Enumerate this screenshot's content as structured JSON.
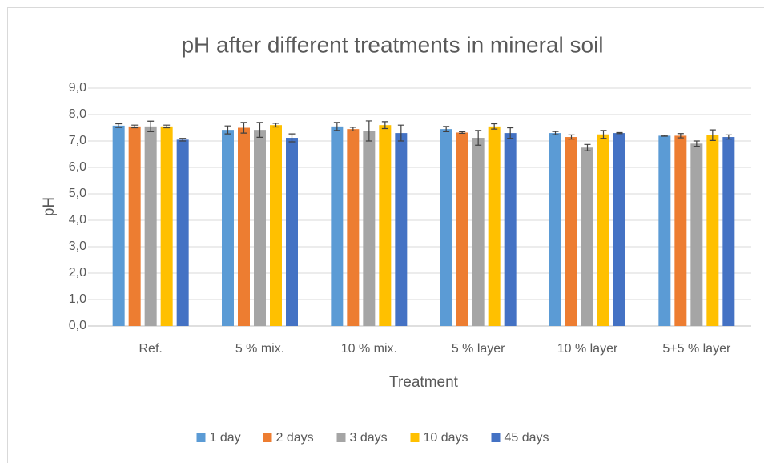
{
  "chart_data": {
    "type": "bar",
    "title": "pH after different treatments in mineral soil",
    "x_label": "Treatment",
    "y_label": "pH",
    "categories": [
      "Ref.",
      "5 % mix.",
      "10 % mix.",
      "5 % layer",
      "10 % layer",
      "5+5 % layer"
    ],
    "series": [
      {
        "name": "1 day",
        "color": "#5b9bd5",
        "values": [
          7.58,
          7.42,
          7.55,
          7.45,
          7.3,
          7.2
        ],
        "errors": [
          0.07,
          0.15,
          0.15,
          0.1,
          0.06,
          0.02
        ]
      },
      {
        "name": "2 days",
        "color": "#ed7d31",
        "values": [
          7.55,
          7.5,
          7.45,
          7.32,
          7.15,
          7.2
        ],
        "errors": [
          0.05,
          0.2,
          0.07,
          0.03,
          0.08,
          0.08
        ]
      },
      {
        "name": "3 days",
        "color": "#a5a5a5",
        "values": [
          7.55,
          7.42,
          7.38,
          7.12,
          6.75,
          6.9
        ],
        "errors": [
          0.2,
          0.28,
          0.38,
          0.28,
          0.12,
          0.1
        ]
      },
      {
        "name": "10 days",
        "color": "#ffc000",
        "values": [
          7.55,
          7.6,
          7.6,
          7.55,
          7.25,
          7.22
        ],
        "errors": [
          0.05,
          0.07,
          0.13,
          0.1,
          0.15,
          0.2
        ]
      },
      {
        "name": "45 days",
        "color": "#4472c4",
        "values": [
          7.05,
          7.12,
          7.3,
          7.3,
          7.3,
          7.15
        ],
        "errors": [
          0.05,
          0.15,
          0.3,
          0.2,
          0.02,
          0.08
        ]
      }
    ],
    "ylim": [
      0,
      9
    ],
    "yticks": [
      {
        "value": 0,
        "label": "0,0"
      },
      {
        "value": 1,
        "label": "1,0"
      },
      {
        "value": 2,
        "label": "2,0"
      },
      {
        "value": 3,
        "label": "3,0"
      },
      {
        "value": 4,
        "label": "4,0"
      },
      {
        "value": 5,
        "label": "5,0"
      },
      {
        "value": 6,
        "label": "6,0"
      },
      {
        "value": 7,
        "label": "7,0"
      },
      {
        "value": 8,
        "label": "8,0"
      },
      {
        "value": 9,
        "label": "9,0"
      }
    ],
    "grid": true,
    "legend": "bottom"
  }
}
